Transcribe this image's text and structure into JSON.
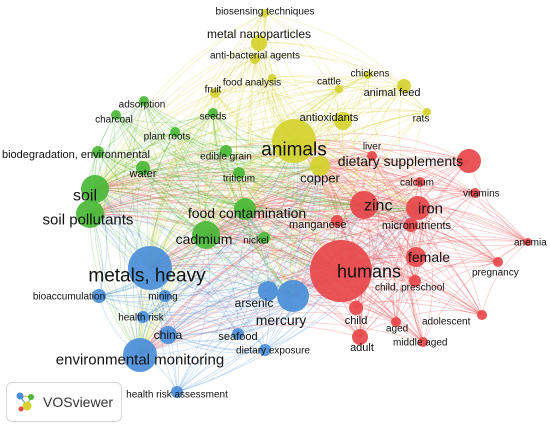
{
  "logo": {
    "text": "VOSviewer",
    "icon": "vosviewer-logo-icon"
  },
  "colors": {
    "red": "#e8474a",
    "green": "#4ab837",
    "blue": "#4a8ed8",
    "yellow": "#d4d22e"
  },
  "nodes": [
    {
      "id": "humans",
      "label": "humans",
      "cluster": "red"
    },
    {
      "id": "zinc",
      "label": "zinc",
      "cluster": "red"
    },
    {
      "id": "iron",
      "label": "iron",
      "cluster": "red"
    },
    {
      "id": "dietary_supplements",
      "label": "dietary supplements",
      "cluster": "red"
    },
    {
      "id": "female",
      "label": "female",
      "cluster": "red"
    },
    {
      "id": "micronutrients",
      "label": "micronutrients",
      "cluster": "red"
    },
    {
      "id": "calcium",
      "label": "calcium",
      "cluster": "red"
    },
    {
      "id": "vitamins",
      "label": "vitamins",
      "cluster": "red"
    },
    {
      "id": "anemia",
      "label": "anemia",
      "cluster": "red"
    },
    {
      "id": "pregnancy",
      "label": "pregnancy",
      "cluster": "red"
    },
    {
      "id": "child_preschool",
      "label": "child, preschool",
      "cluster": "red"
    },
    {
      "id": "adolescent",
      "label": "adolescent",
      "cluster": "red"
    },
    {
      "id": "aged",
      "label": "aged",
      "cluster": "red"
    },
    {
      "id": "middle_aged",
      "label": "middle aged",
      "cluster": "red"
    },
    {
      "id": "child",
      "label": "child",
      "cluster": "red"
    },
    {
      "id": "adult",
      "label": "adult",
      "cluster": "red"
    },
    {
      "id": "manganese",
      "label": "manganese",
      "cluster": "red"
    },
    {
      "id": "liver",
      "label": "liver",
      "cluster": "red"
    },
    {
      "id": "copper",
      "label": "copper",
      "cluster": "yellow"
    },
    {
      "id": "animals",
      "label": "animals",
      "cluster": "yellow"
    },
    {
      "id": "antioxidants",
      "label": "antioxidants",
      "cluster": "yellow"
    },
    {
      "id": "animal_feed",
      "label": "animal feed",
      "cluster": "yellow"
    },
    {
      "id": "rats",
      "label": "rats",
      "cluster": "yellow"
    },
    {
      "id": "chickens",
      "label": "chickens",
      "cluster": "yellow"
    },
    {
      "id": "cattle",
      "label": "cattle",
      "cluster": "yellow"
    },
    {
      "id": "food_analysis",
      "label": "food analysis",
      "cluster": "yellow"
    },
    {
      "id": "metal_nanoparticles",
      "label": "metal nanoparticles",
      "cluster": "yellow"
    },
    {
      "id": "biosensing",
      "label": "biosensing techniques",
      "cluster": "yellow"
    },
    {
      "id": "antibacterial",
      "label": "anti-bacterial agents",
      "cluster": "yellow"
    },
    {
      "id": "fruit",
      "label": "fruit",
      "cluster": "yellow"
    },
    {
      "id": "cadmium",
      "label": "cadmium",
      "cluster": "green"
    },
    {
      "id": "food_contamination",
      "label": "food contamination",
      "cluster": "green"
    },
    {
      "id": "soil",
      "label": "soil",
      "cluster": "green"
    },
    {
      "id": "soil_pollutants",
      "label": "soil pollutants",
      "cluster": "green"
    },
    {
      "id": "biodegradation",
      "label": "biodegradation, environmental",
      "cluster": "green"
    },
    {
      "id": "water",
      "label": "water",
      "cluster": "green"
    },
    {
      "id": "charcoal",
      "label": "charcoal",
      "cluster": "green"
    },
    {
      "id": "adsorption",
      "label": "adsorption",
      "cluster": "green"
    },
    {
      "id": "plant_roots",
      "label": "plant roots",
      "cluster": "green"
    },
    {
      "id": "seeds",
      "label": "seeds",
      "cluster": "green"
    },
    {
      "id": "edible_grain",
      "label": "edible grain",
      "cluster": "green"
    },
    {
      "id": "triticum",
      "label": "triticum",
      "cluster": "green"
    },
    {
      "id": "nickel",
      "label": "nickel",
      "cluster": "green"
    },
    {
      "id": "metals_heavy",
      "label": "metals, heavy",
      "cluster": "blue"
    },
    {
      "id": "env_monitoring",
      "label": "environmental monitoring",
      "cluster": "blue"
    },
    {
      "id": "mercury",
      "label": "mercury",
      "cluster": "blue"
    },
    {
      "id": "arsenic",
      "label": "arsenic",
      "cluster": "blue"
    },
    {
      "id": "china",
      "label": "china",
      "cluster": "blue"
    },
    {
      "id": "seafood",
      "label": "seafood",
      "cluster": "blue"
    },
    {
      "id": "bioaccumulation",
      "label": "bioaccumulation",
      "cluster": "blue"
    },
    {
      "id": "mining",
      "label": "mining",
      "cluster": "blue"
    },
    {
      "id": "health_risk",
      "label": "health risk",
      "cluster": "blue"
    },
    {
      "id": "dietary_exposure",
      "label": "dietary exposure",
      "cluster": "blue"
    },
    {
      "id": "hra",
      "label": "health risk assessment",
      "cluster": "blue"
    }
  ]
}
